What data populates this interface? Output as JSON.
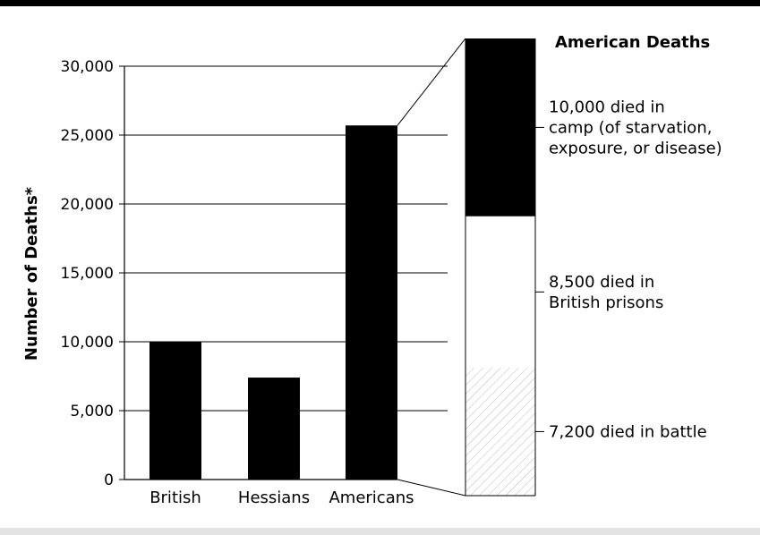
{
  "chart_data": {
    "type": "bar",
    "ylabel": "Number of Deaths*",
    "ylim": [
      0,
      30000
    ],
    "yticks": [
      "30,000",
      "25,000",
      "20,000",
      "15,000",
      "10,000",
      "5,000",
      "0"
    ],
    "ytick_values": [
      30000,
      25000,
      20000,
      15000,
      10000,
      5000,
      0
    ],
    "categories": [
      "British",
      "Hessians",
      "Americans"
    ],
    "values": [
      10000,
      7400,
      25700
    ],
    "grid": true,
    "breakdown": {
      "title": "American Deaths",
      "parent_category": "Americans",
      "segments": [
        {
          "lines": [
            "10,000 died in",
            "camp (of starvation,",
            "exposure, or disease)"
          ],
          "value": 10000,
          "fill": "#000000"
        },
        {
          "lines": [
            "8,500 died in",
            "British prisons"
          ],
          "value": 8500,
          "fill": "#ffffff"
        },
        {
          "lines": [
            "7,200 died in battle"
          ],
          "value": 7200,
          "fill": "hatch"
        }
      ]
    }
  }
}
